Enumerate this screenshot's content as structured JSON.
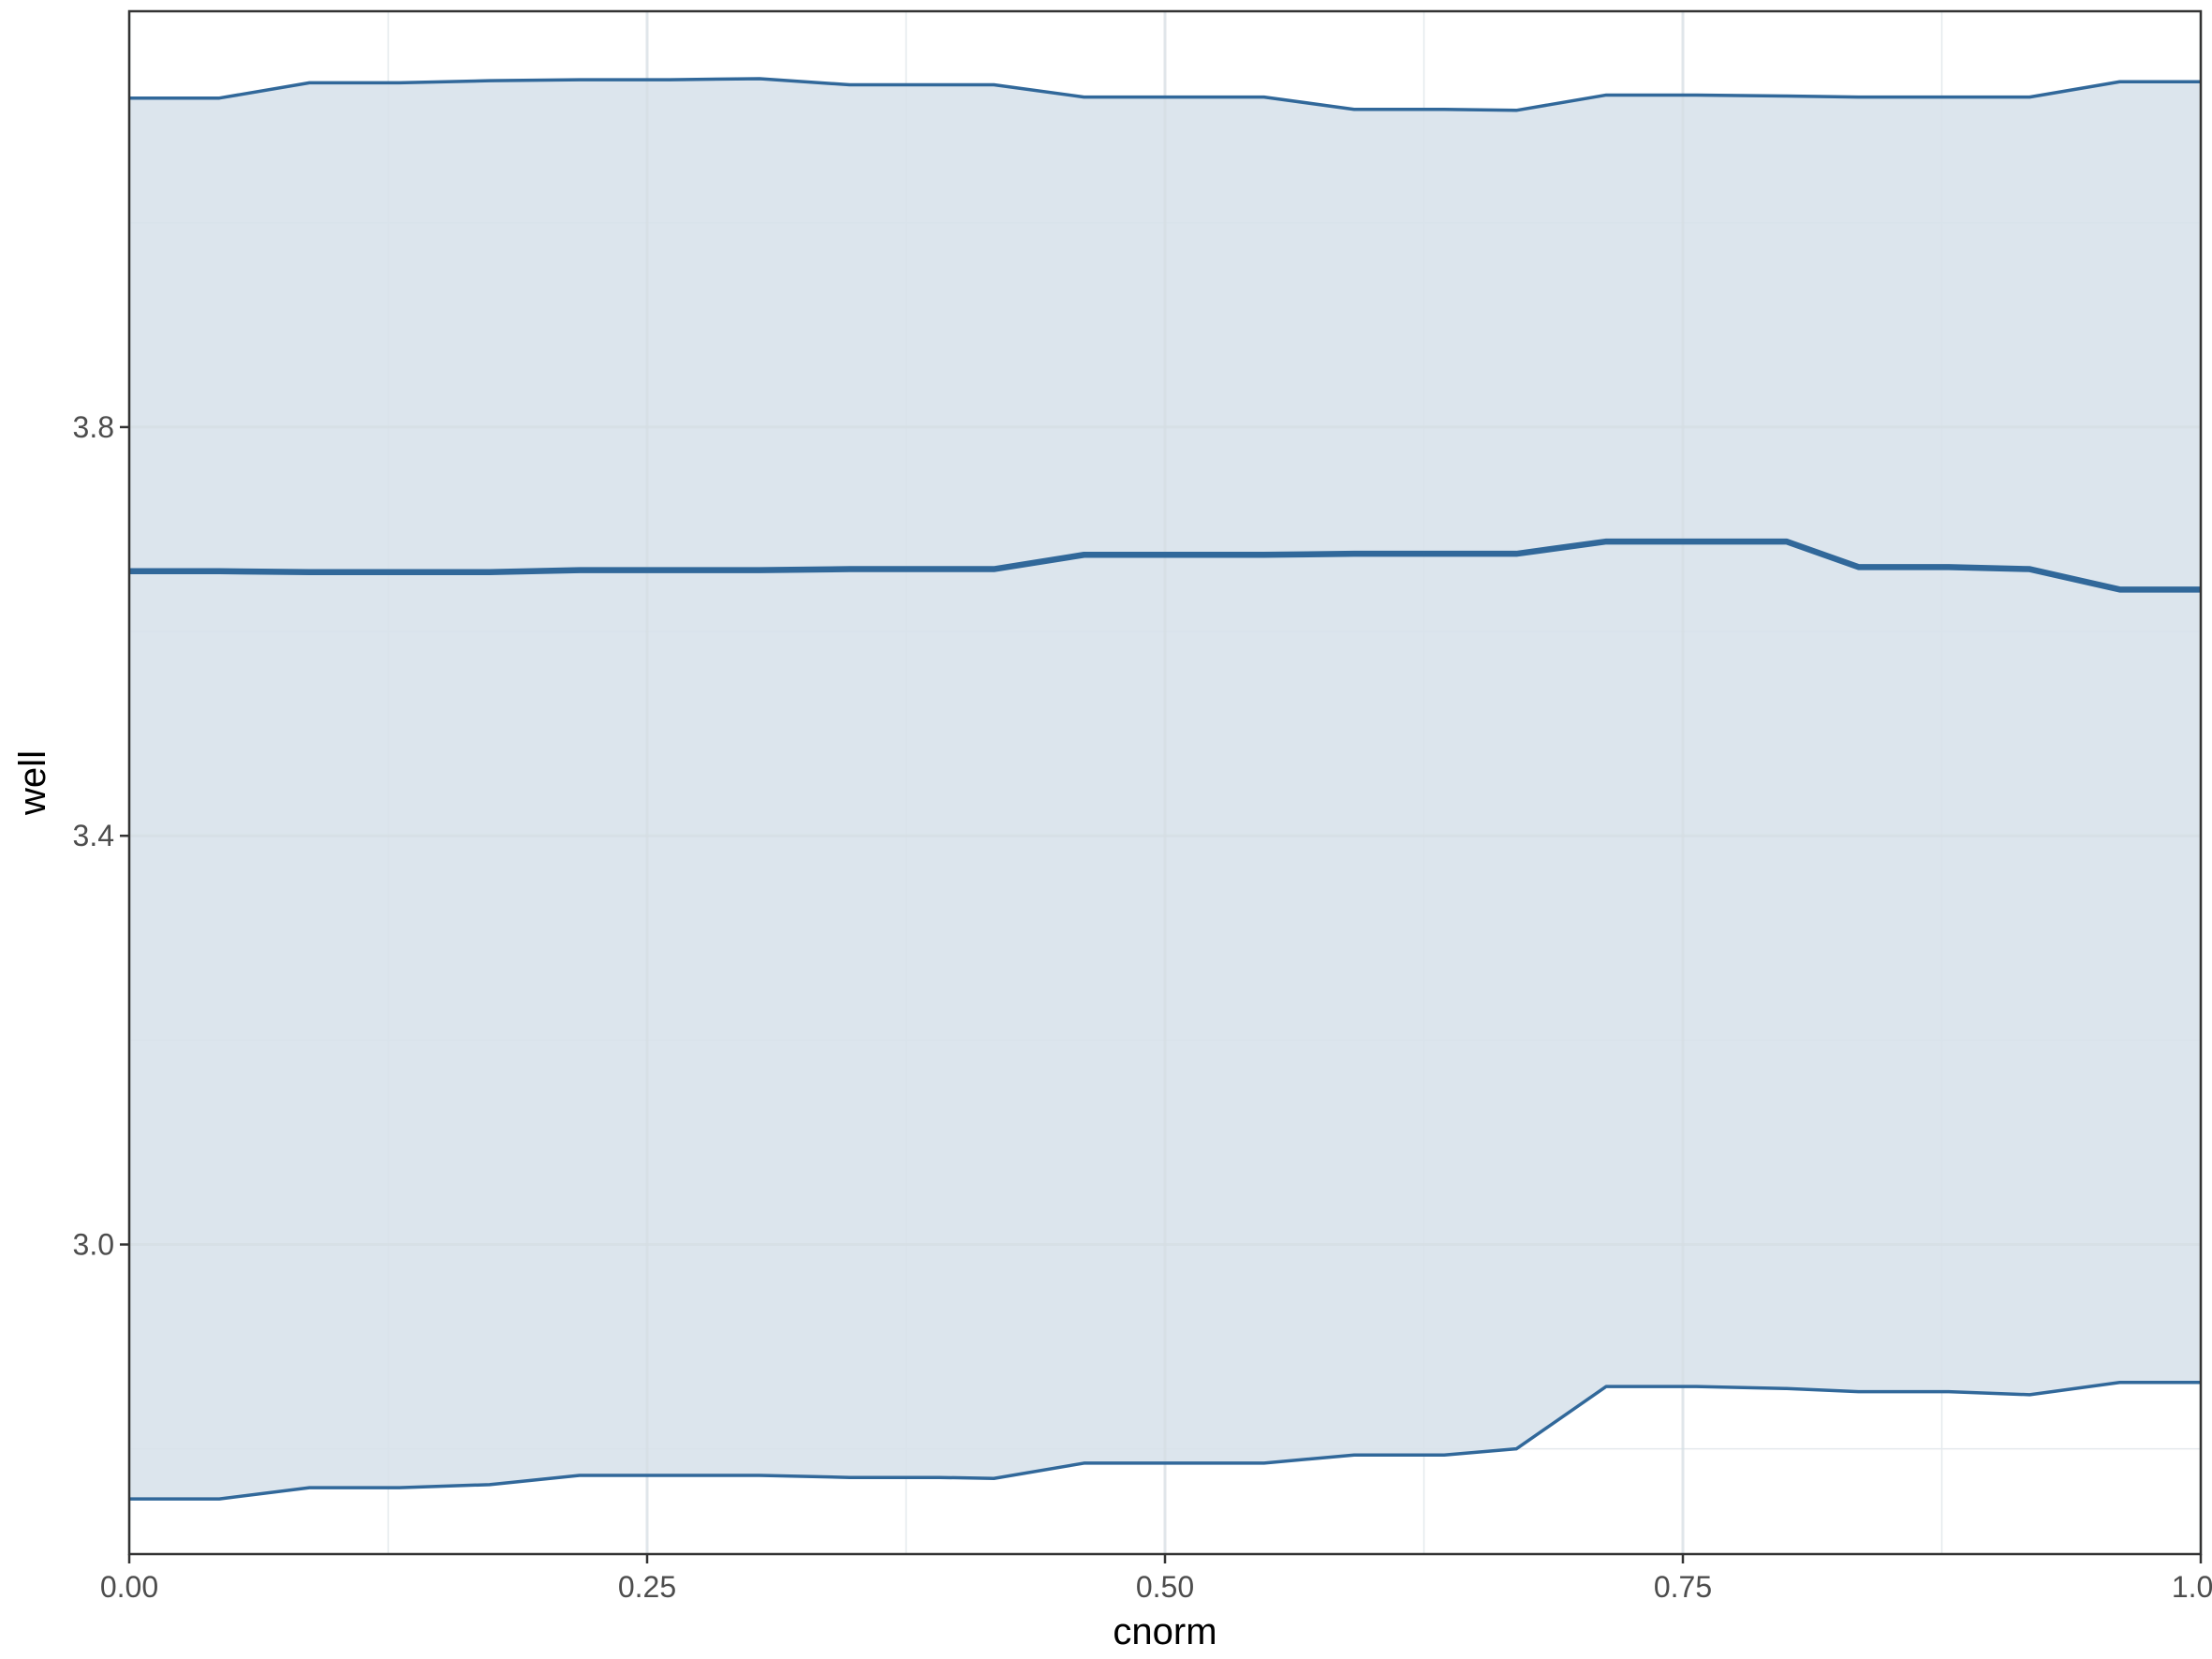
{
  "chart_data": {
    "type": "line",
    "xlabel": "cnorm",
    "ylabel": "well",
    "xlim": [
      0,
      1
    ],
    "ylim": [
      2.697,
      4.207
    ],
    "x_ticks": [
      0,
      0.25,
      0.5,
      0.75,
      1
    ],
    "x_tick_labels": [
      "0.00",
      "0.25",
      "0.50",
      "0.75",
      "1.00"
    ],
    "y_ticks": [
      3.0,
      3.4,
      3.8
    ],
    "y_tick_labels": [
      "3.0",
      "3.4",
      "3.8"
    ],
    "x_minor_ticks": [
      0.125,
      0.375,
      0.625,
      0.875
    ],
    "y_minor_ticks": [
      2.8,
      3.2,
      3.6,
      4.0
    ],
    "grid": true,
    "legend": "none",
    "x": [
      0,
      0.0435,
      0.087,
      0.1304,
      0.1739,
      0.2174,
      0.2609,
      0.3043,
      0.3478,
      0.3913,
      0.4174,
      0.4609,
      0.5043,
      0.5478,
      0.5913,
      0.6348,
      0.6696,
      0.713,
      0.7565,
      0.8,
      0.8348,
      0.8783,
      0.9174,
      0.9609,
      1.0
    ],
    "series": [
      {
        "values": [
          3.659,
          3.659,
          3.658,
          3.658,
          3.658,
          3.66,
          3.66,
          3.66,
          3.661,
          3.661,
          3.661,
          3.675,
          3.675,
          3.675,
          3.676,
          3.676,
          3.676,
          3.688,
          3.688,
          3.688,
          3.663,
          3.663,
          3.661,
          3.641,
          3.641
        ],
        "lower": [
          2.751,
          2.751,
          2.762,
          2.762,
          2.765,
          2.774,
          2.774,
          2.774,
          2.772,
          2.772,
          2.771,
          2.786,
          2.786,
          2.786,
          2.794,
          2.794,
          2.8,
          2.861,
          2.861,
          2.859,
          2.856,
          2.856,
          2.853,
          2.865,
          2.865
        ],
        "upper": [
          4.122,
          4.122,
          4.137,
          4.137,
          4.139,
          4.14,
          4.14,
          4.141,
          4.135,
          4.135,
          4.135,
          4.123,
          4.123,
          4.123,
          4.111,
          4.111,
          4.11,
          4.125,
          4.125,
          4.124,
          4.123,
          4.123,
          4.123,
          4.138,
          4.138
        ]
      }
    ]
  },
  "style": {
    "line_color": "#31689a",
    "ribbon_color": "#d7e1ea",
    "grid_major_color": "#d6dde3",
    "grid_minor_color": "#e4e9ed",
    "panel_border_color": "#333333"
  }
}
